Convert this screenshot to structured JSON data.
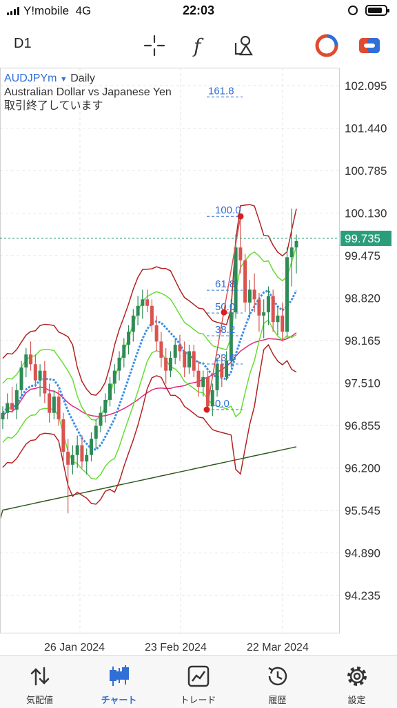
{
  "status_bar": {
    "carrier": "Y!mobile",
    "network": "4G",
    "time": "22:03"
  },
  "toolbar": {
    "timeframe": "D1",
    "icons": [
      "crosshair-icon",
      "function-icon",
      "objects-icon",
      "one-click-trading-icon",
      "trade-toggle-icon"
    ]
  },
  "chart": {
    "symbol": "AUDJPYm",
    "period": "Daily",
    "description": "Australian Dollar vs Japanese Yen",
    "status": "取引終了しています",
    "current_price": "99.735",
    "price_axis": [
      "102.095",
      "101.440",
      "100.785",
      "100.130",
      "99.475",
      "98.820",
      "98.165",
      "97.510",
      "96.855",
      "96.200",
      "95.545",
      "94.890",
      "94.235"
    ],
    "date_axis": [
      "26 Jan 2024",
      "23 Feb 2024",
      "22 Mar 2024"
    ],
    "fibonacci_levels": [
      "161.8",
      "100.0",
      "61.8",
      "50.0",
      "38.2",
      "23.6",
      "0.0"
    ],
    "colors": {
      "bull": "#2e8b57",
      "bear": "#d9534f",
      "ma_blue": "#3b8fe6",
      "bb_outer": "#b22222",
      "bb_inner": "#66dd33",
      "ma_pink": "#e0287a",
      "ma_dark": "#2f5a1e",
      "fibo": "#2f6fd6"
    }
  },
  "chart_data": {
    "type": "candlestick",
    "xlabel": "",
    "ylabel": "",
    "ylim": [
      93.8,
      102.6
    ],
    "ohlc": [
      [
        96.95,
        97.15,
        96.8,
        97.05
      ],
      [
        97.05,
        97.35,
        96.95,
        97.2
      ],
      [
        97.2,
        97.45,
        97.05,
        97.1
      ],
      [
        97.1,
        97.5,
        96.95,
        97.4
      ],
      [
        97.4,
        97.85,
        97.3,
        97.75
      ],
      [
        97.75,
        98.05,
        97.6,
        97.95
      ],
      [
        97.95,
        98.15,
        97.7,
        97.8
      ],
      [
        97.8,
        97.95,
        97.45,
        97.55
      ],
      [
        97.55,
        97.8,
        97.3,
        97.7
      ],
      [
        97.7,
        97.85,
        97.2,
        97.35
      ],
      [
        97.35,
        97.5,
        96.9,
        97.05
      ],
      [
        97.05,
        97.4,
        96.95,
        97.3
      ],
      [
        97.3,
        97.4,
        96.85,
        96.95
      ],
      [
        96.95,
        97.05,
        96.3,
        96.45
      ],
      [
        96.45,
        96.65,
        95.5,
        96.25
      ],
      [
        96.25,
        96.55,
        96.1,
        96.4
      ],
      [
        96.4,
        96.7,
        96.2,
        96.55
      ],
      [
        96.55,
        96.7,
        96.2,
        96.3
      ],
      [
        96.3,
        96.5,
        96.1,
        96.4
      ],
      [
        96.4,
        96.75,
        96.3,
        96.65
      ],
      [
        96.65,
        96.95,
        96.5,
        96.85
      ],
      [
        96.85,
        97.15,
        96.75,
        97.05
      ],
      [
        97.05,
        97.35,
        96.9,
        97.25
      ],
      [
        97.25,
        97.6,
        97.15,
        97.5
      ],
      [
        97.5,
        97.8,
        97.35,
        97.7
      ],
      [
        97.7,
        98.0,
        97.55,
        97.9
      ],
      [
        97.9,
        98.2,
        97.75,
        98.1
      ],
      [
        98.1,
        98.4,
        97.95,
        98.3
      ],
      [
        98.3,
        98.65,
        98.15,
        98.55
      ],
      [
        98.55,
        98.85,
        98.4,
        98.7
      ],
      [
        98.7,
        98.95,
        98.5,
        98.8
      ],
      [
        98.8,
        98.95,
        98.6,
        98.7
      ],
      [
        98.7,
        98.8,
        98.3,
        98.4
      ],
      [
        98.4,
        98.55,
        98.0,
        98.15
      ],
      [
        98.15,
        98.3,
        97.75,
        97.9
      ],
      [
        97.9,
        98.05,
        97.5,
        97.7
      ],
      [
        97.7,
        98.0,
        97.6,
        97.9
      ],
      [
        97.9,
        98.2,
        97.8,
        98.1
      ],
      [
        98.1,
        98.25,
        97.85,
        98.0
      ],
      [
        98.0,
        98.15,
        97.6,
        97.75
      ],
      [
        97.75,
        98.1,
        97.65,
        98.0
      ],
      [
        98.0,
        98.1,
        97.6,
        97.7
      ],
      [
        97.7,
        97.85,
        97.3,
        97.45
      ],
      [
        97.45,
        97.7,
        97.3,
        97.6
      ],
      [
        97.6,
        97.7,
        97.05,
        97.15
      ],
      [
        97.15,
        97.5,
        97.0,
        97.4
      ],
      [
        97.4,
        97.9,
        97.3,
        97.8
      ],
      [
        97.8,
        97.95,
        97.45,
        97.6
      ],
      [
        97.6,
        98.0,
        97.55,
        97.85
      ],
      [
        97.85,
        98.8,
        97.75,
        98.6
      ],
      [
        98.6,
        99.8,
        98.5,
        99.6
      ],
      [
        99.6,
        100.1,
        99.2,
        99.4
      ],
      [
        99.4,
        99.5,
        98.6,
        98.75
      ],
      [
        98.75,
        99.1,
        98.5,
        98.95
      ],
      [
        98.95,
        99.2,
        98.6,
        98.8
      ],
      [
        98.8,
        98.9,
        98.3,
        98.55
      ],
      [
        98.55,
        98.8,
        98.2,
        98.6
      ],
      [
        98.6,
        99.0,
        98.4,
        98.85
      ],
      [
        98.85,
        98.95,
        98.3,
        98.45
      ],
      [
        98.45,
        98.7,
        98.25,
        98.55
      ],
      [
        98.55,
        98.75,
        98.15,
        98.3
      ],
      [
        98.3,
        99.6,
        98.2,
        99.45
      ],
      [
        99.45,
        100.2,
        99.0,
        99.6
      ],
      [
        99.6,
        99.8,
        99.2,
        99.7
      ]
    ],
    "last_price": 99.735
  }
}
